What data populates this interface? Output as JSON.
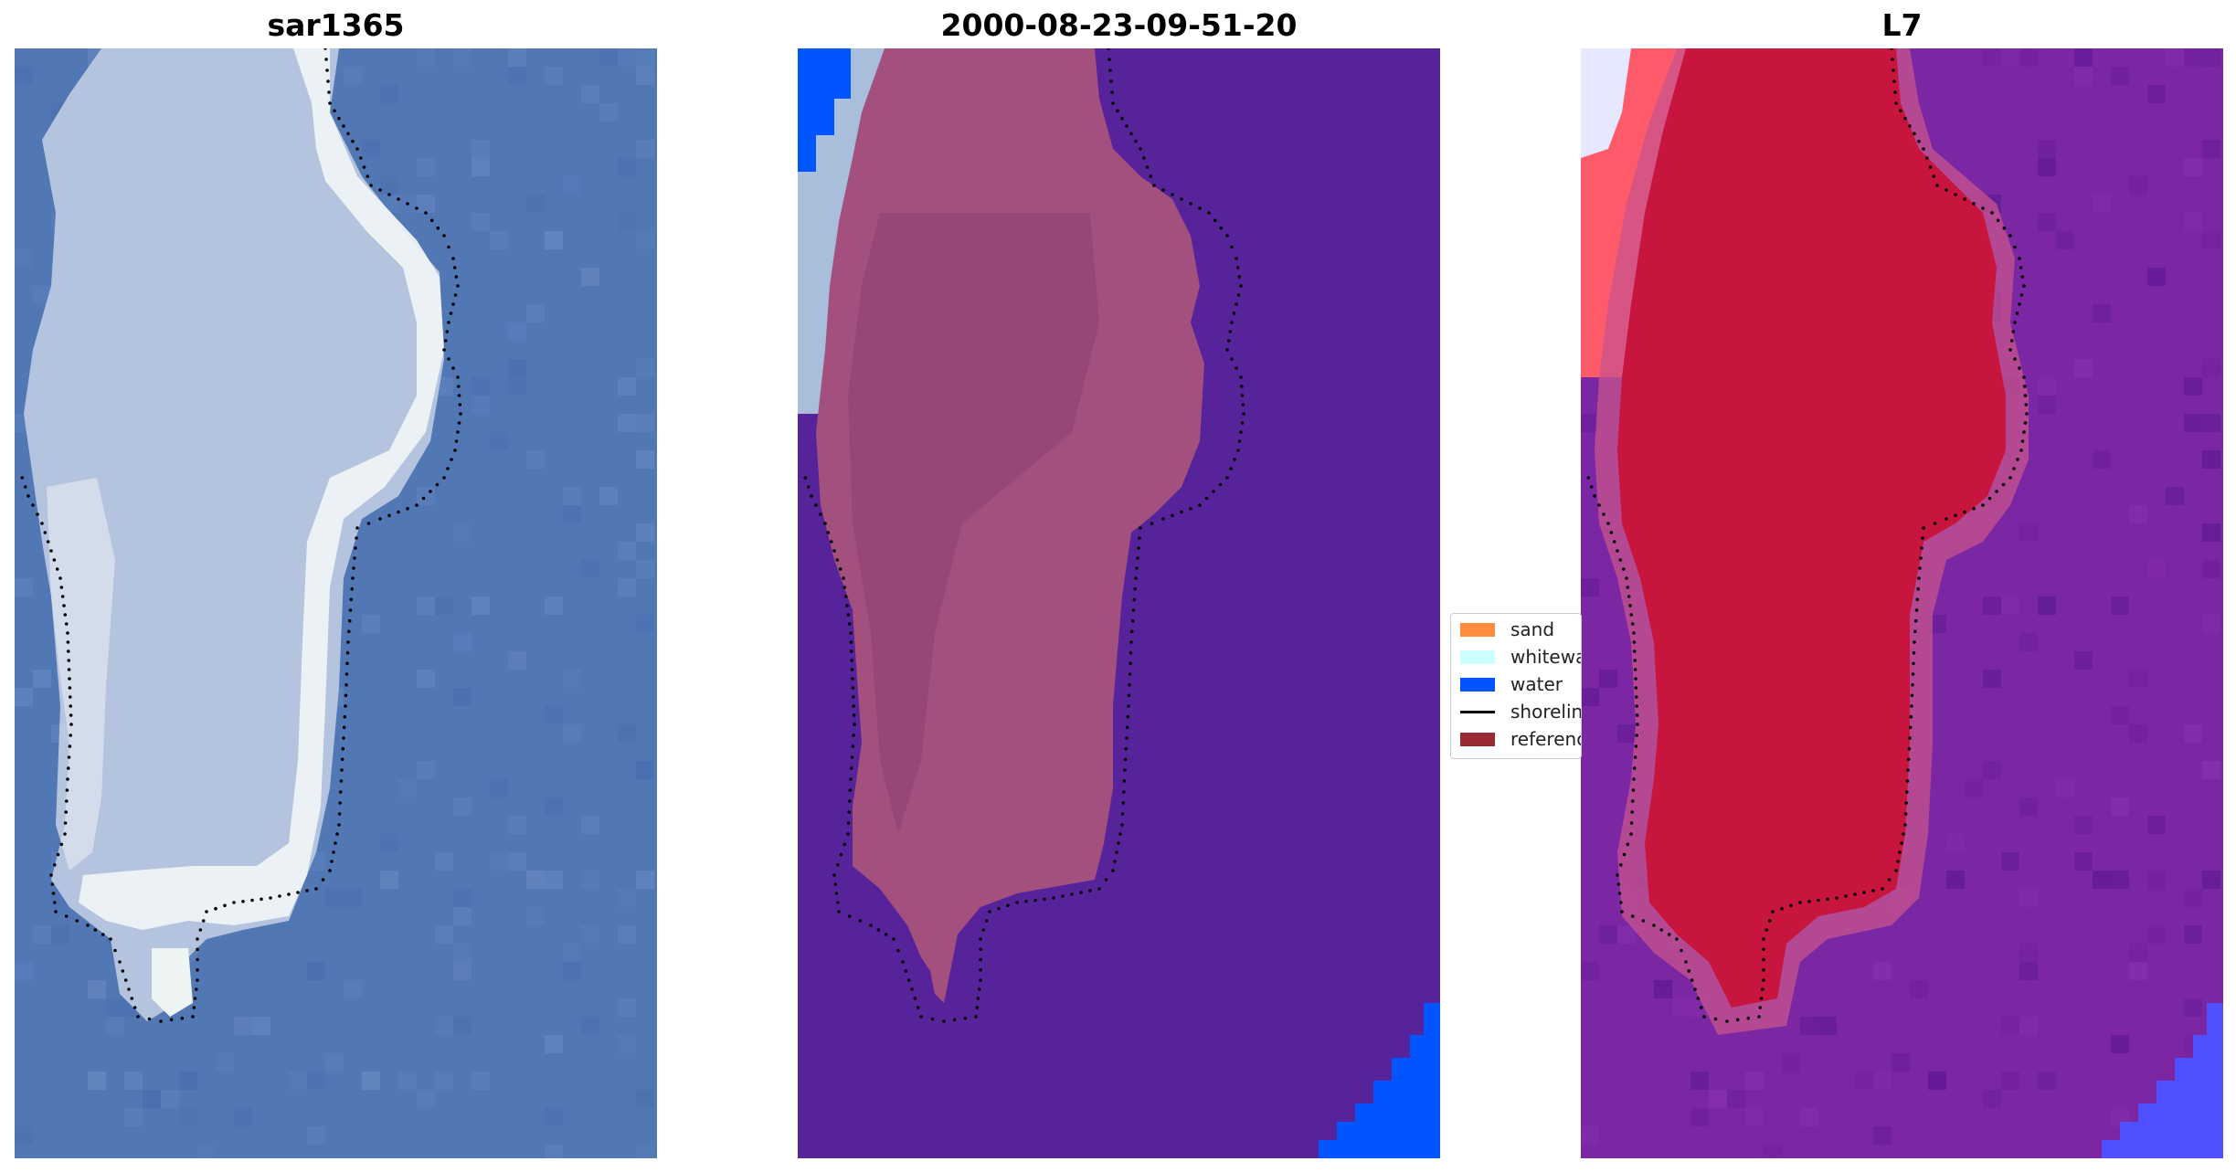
{
  "panels": [
    {
      "title": "sar1365"
    },
    {
      "title": "2000-08-23-09-51-20"
    },
    {
      "title": "L7"
    }
  ],
  "legend": {
    "items": [
      {
        "label": "sand",
        "color": "#ff8c3c",
        "kind": "patch"
      },
      {
        "label": "whitewater",
        "color": "#ccffff",
        "kind": "patch"
      },
      {
        "label": "water",
        "color": "#0055ff",
        "kind": "patch"
      },
      {
        "label": "shoreline",
        "color": "#000000",
        "kind": "line"
      },
      {
        "label": "reference",
        "color": "#9a2a34",
        "kind": "patch"
      }
    ]
  },
  "colors": {
    "ocean_rgb": "#5277b5",
    "land_rgb": "#b4c4de",
    "surf_rgb": "#eef3f4",
    "class_water": "#57239a",
    "class_land": "#a3507f",
    "class_whitewater": "#a9bedb",
    "class_water_edge": "#0055ff",
    "index_background": "#7b26a3",
    "index_land": "#c7153e",
    "index_edge_blue": "#5150ff"
  }
}
